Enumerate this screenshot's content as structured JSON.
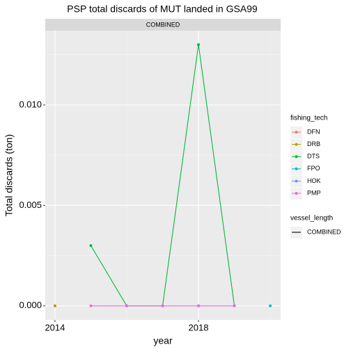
{
  "chart_data": {
    "type": "line",
    "title": "PSP total discards of MUT landed in GSA99",
    "facet": "COMBINED",
    "x_label": "year",
    "y_label": "Total discards (ton)",
    "x": [
      2014,
      2015,
      2016,
      2017,
      2018,
      2019,
      2020
    ],
    "series": [
      {
        "name": "DFN",
        "color": "#F8766D",
        "values": [
          0,
          null,
          null,
          null,
          null,
          null,
          null
        ]
      },
      {
        "name": "DRB",
        "color": "#B79F00",
        "values": [
          0,
          null,
          null,
          null,
          null,
          null,
          null
        ]
      },
      {
        "name": "DTS",
        "color": "#00BA38",
        "values": [
          null,
          0.003,
          0,
          0,
          0.013,
          0,
          null
        ]
      },
      {
        "name": "FPO",
        "color": "#00BFC4",
        "values": [
          null,
          null,
          null,
          null,
          null,
          null,
          0
        ]
      },
      {
        "name": "HOK",
        "color": "#619CFF",
        "values": [
          null,
          null,
          null,
          null,
          0,
          null,
          null
        ]
      },
      {
        "name": "PMP",
        "color": "#F564E3",
        "values": [
          null,
          0,
          0,
          0,
          0,
          0,
          null
        ]
      }
    ],
    "xlim": [
      2013.73,
      2020.29
    ],
    "xticks": [
      2014,
      2018
    ],
    "ylim": [
      -0.0007,
      0.0137
    ],
    "yticks": [
      {
        "value": 0,
        "label": "0.000"
      },
      {
        "value": 0.005,
        "label": "0.005"
      },
      {
        "value": 0.01,
        "label": "0.010"
      }
    ],
    "grid": true,
    "legend_title": "fishing_tech",
    "legend2_title": "vessel_length",
    "legend2_entries": [
      "COMBINED"
    ],
    "legend_position": "right"
  }
}
